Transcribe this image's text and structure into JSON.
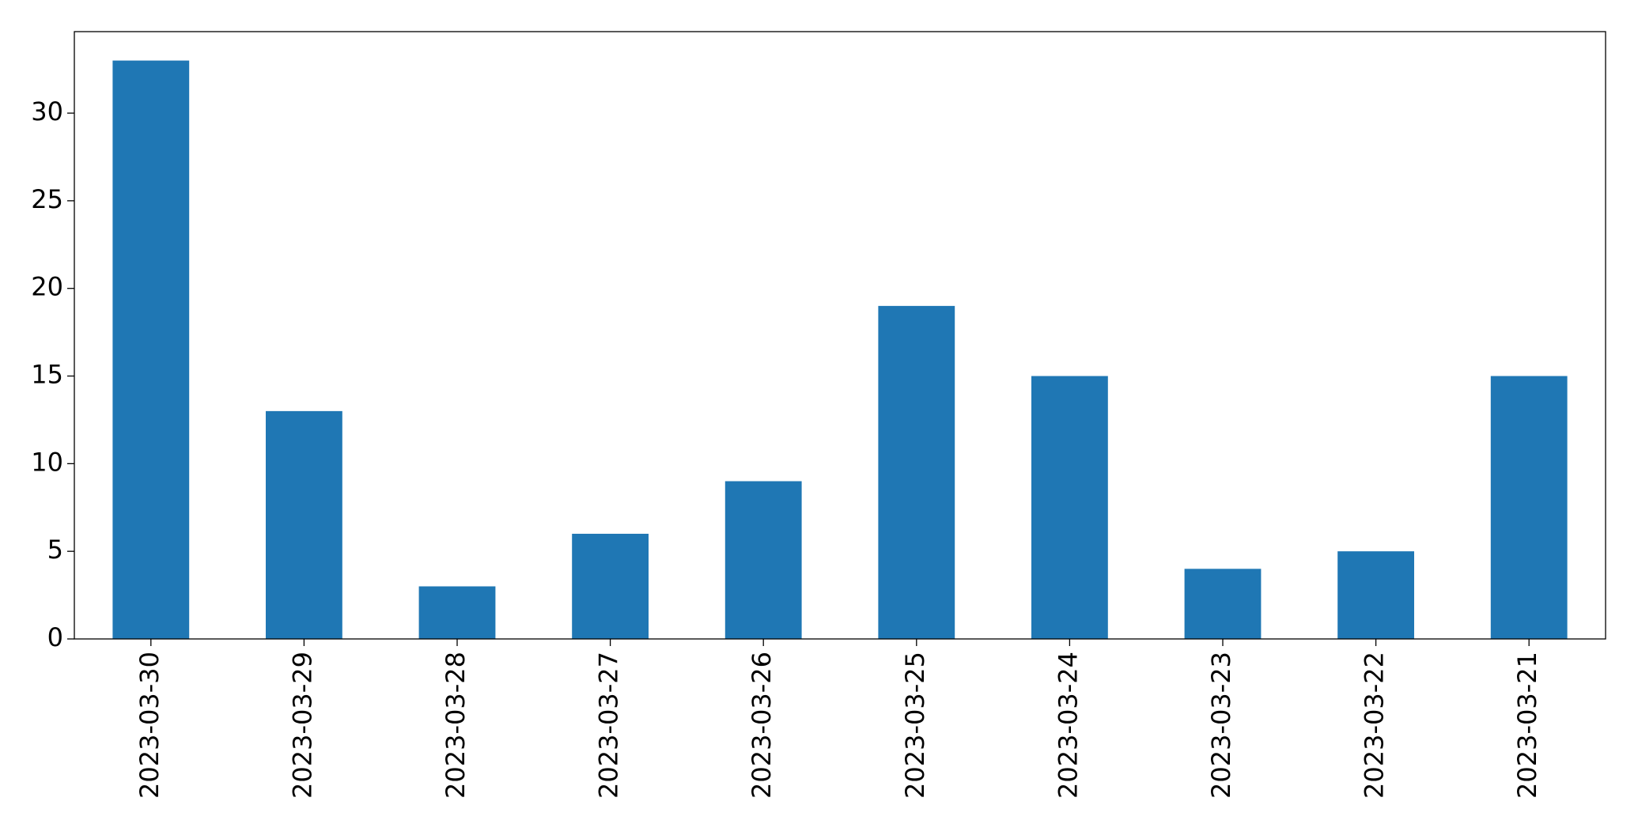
{
  "chart_data": {
    "type": "bar",
    "categories": [
      "2023-03-30",
      "2023-03-29",
      "2023-03-28",
      "2023-03-27",
      "2023-03-26",
      "2023-03-25",
      "2023-03-24",
      "2023-03-23",
      "2023-03-22",
      "2023-03-21"
    ],
    "values": [
      33,
      13,
      3,
      6,
      9,
      19,
      15,
      4,
      5,
      15
    ],
    "color": "#1f77b4",
    "ylim": [
      0,
      34.65
    ],
    "yticks": [
      0,
      5,
      10,
      15,
      20,
      25,
      30
    ],
    "grid": false
  }
}
